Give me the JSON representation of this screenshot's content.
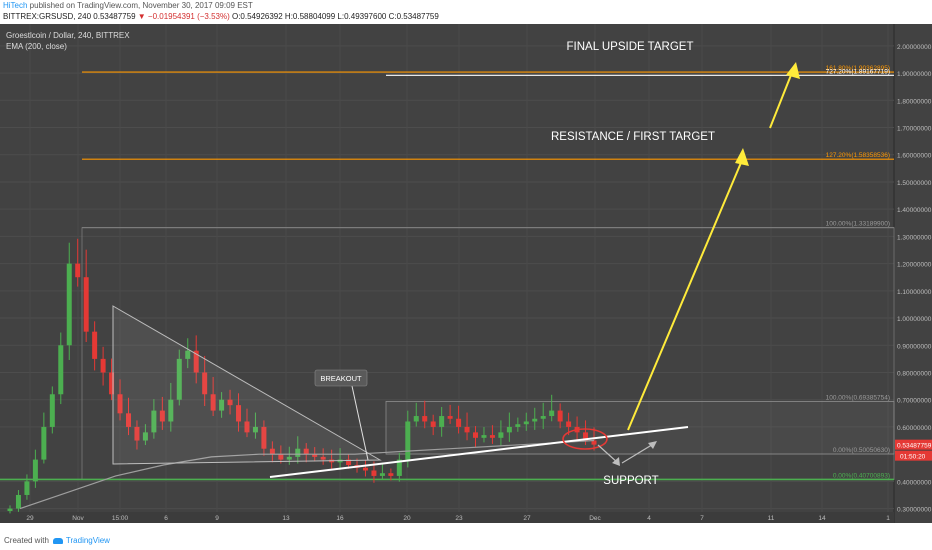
{
  "header": {
    "author": "HiTech",
    "published_text": " published on TradingView.com, November 30, 2017 09:09 EST",
    "symbol_line": "BITTREX:GRSUSD, 240",
    "price_now": "0.53487759",
    "change": "−0.01954391 (−3.53%)",
    "ohlc": "O:0.54926392 H:0.58804099 L:0.49397600 C:0.53487759"
  },
  "footer": {
    "created_with": "Created with",
    "brand": "TradingView"
  },
  "chart_data": {
    "type": "candlestick",
    "title": "Groestlcoin / Dollar, 240, BITTREX",
    "indicator": "EMA (200, close)",
    "y_axis": {
      "ticks": [
        "2.00000000",
        "1.90000000",
        "1.80000000",
        "1.70000000",
        "1.60000000",
        "1.50000000",
        "1.40000000",
        "1.30000000",
        "1.20000000",
        "1.10000000",
        "1.00000000",
        "0.90000000",
        "0.80000000",
        "0.70000000",
        "0.60000000",
        "0.40000000",
        "0.30000000"
      ],
      "range": [
        0.24,
        2.0
      ],
      "price_tag": "0.53487759",
      "timer_tag": "01:50:20"
    },
    "x_axis": {
      "ticks": [
        "29",
        "Nov",
        "15:00",
        "6",
        "9",
        "13",
        "16",
        "20",
        "23",
        "27",
        "Dec",
        "4",
        "7",
        "11",
        "14",
        "1"
      ]
    },
    "ohlc_sample_close": [
      0.3,
      0.35,
      0.4,
      0.48,
      0.6,
      0.72,
      0.9,
      1.2,
      1.15,
      0.95,
      0.85,
      0.8,
      0.72,
      0.65,
      0.6,
      0.55,
      0.58,
      0.66,
      0.62,
      0.7,
      0.85,
      0.88,
      0.8,
      0.72,
      0.66,
      0.7,
      0.68,
      0.62,
      0.58,
      0.6,
      0.52,
      0.5,
      0.48,
      0.49,
      0.52,
      0.5,
      0.49,
      0.48,
      0.47,
      0.48,
      0.46,
      0.45,
      0.44,
      0.42,
      0.43,
      0.42,
      0.48,
      0.62,
      0.64,
      0.62,
      0.6,
      0.64,
      0.63,
      0.6,
      0.58,
      0.56,
      0.57,
      0.56,
      0.58,
      0.6,
      0.61,
      0.62,
      0.63,
      0.64,
      0.66,
      0.62,
      0.6,
      0.58,
      0.55,
      0.535
    ],
    "ema_200_sample": [
      0.3,
      0.36,
      0.42,
      0.46,
      0.49,
      0.5,
      0.5,
      0.5,
      0.51,
      0.52,
      0.53,
      0.54,
      0.55
    ],
    "fibonacci_levels": [
      {
        "label": "161.80%(1.90362895)",
        "value": 1.90362895
      },
      {
        "label": "727.20%(1.89167719)",
        "value": 1.89167719
      },
      {
        "label": "127.20%(1.58358536)",
        "value": 1.58358536
      },
      {
        "label": "100.00%(1.33189900)",
        "value": 1.331899
      },
      {
        "label": "100.00%(0.69385754)",
        "value": 0.69385754
      },
      {
        "label": "0.00%(0.50050630)",
        "value": 0.5005063
      },
      {
        "label": "0.00%(0.40700893)",
        "value": 0.40700893
      }
    ],
    "annotations": {
      "final_target": "FINAL UPSIDE TARGET",
      "resistance": "RESISTANCE / FIRST TARGET",
      "breakout": "BREAKOUT",
      "support": "SUPPORT"
    },
    "colors": {
      "background": "#424242",
      "up": "#4caf50",
      "down": "#e53935",
      "fib_orange": "#ff9800",
      "support_green": "#4caf50",
      "arrow_yellow": "#ffeb3b",
      "circle_red": "#e53935"
    }
  }
}
